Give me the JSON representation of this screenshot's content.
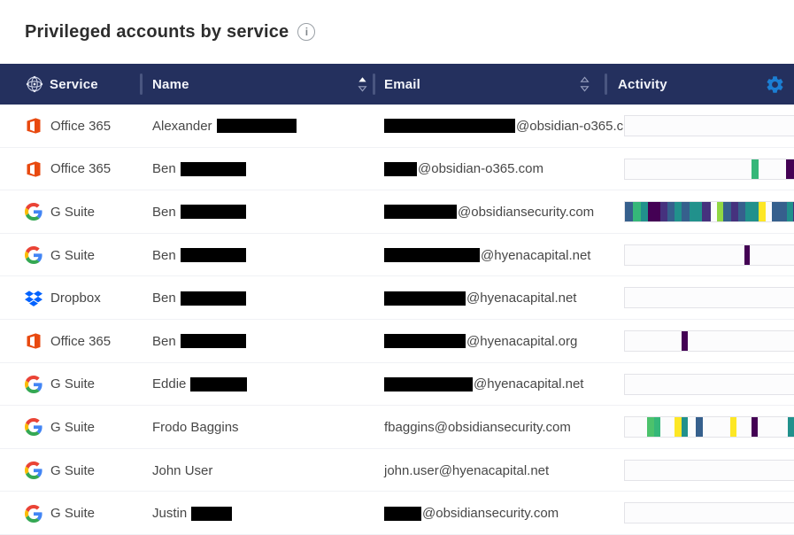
{
  "page": {
    "title": "Privileged accounts by service"
  },
  "header": {
    "columns": [
      {
        "id": "service",
        "label": "Service",
        "sort": "none"
      },
      {
        "id": "name",
        "label": "Name",
        "sort": "asc"
      },
      {
        "id": "email",
        "label": "Email",
        "sort": "none"
      },
      {
        "id": "activity",
        "label": "Activity",
        "sort": "none"
      }
    ]
  },
  "colors": {
    "header_bg": "#24305e",
    "gear_blue": "#1b7ed3",
    "office_orange": "#e8490f",
    "dropbox_blue": "#0062ff",
    "divider": "#4a5680"
  },
  "palette": {
    "darkpurple": "#440154",
    "purple": "#46327e",
    "blue": "#36608d",
    "teal": "#21918c",
    "green": "#35b779",
    "green2": "#4cc26c",
    "lightgreen": "#90d743",
    "yellow": "#fde725"
  },
  "rows": [
    {
      "service": "Office 365",
      "icon": "office365",
      "name": {
        "text": "Alexander",
        "redact_w": 90
      },
      "email": {
        "redact_w": 148,
        "text": "@obsidian-o365.c..."
      },
      "activity": []
    },
    {
      "service": "Office 365",
      "icon": "office365",
      "name": {
        "text": "Ben",
        "redact_w": 74
      },
      "email": {
        "redact_w": 37,
        "text": "@obsidian-o365.com"
      },
      "activity": [
        {
          "x": 72.9,
          "w": 4.2,
          "c": "green"
        },
        {
          "x": 92.7,
          "w": 4.7,
          "c": "darkpurple"
        }
      ]
    },
    {
      "service": "G Suite",
      "icon": "gsuite",
      "name": {
        "text": "Ben",
        "redact_w": 74
      },
      "email": {
        "redact_w": 82,
        "text": "@obsidiansecurity.com"
      },
      "activity": [
        {
          "x": 0,
          "w": 4.7,
          "c": "blue"
        },
        {
          "x": 4.7,
          "w": 4.7,
          "c": "green"
        },
        {
          "x": 9.4,
          "w": 4.2,
          "c": "teal"
        },
        {
          "x": 13.5,
          "w": 6.8,
          "c": "darkpurple"
        },
        {
          "x": 20.3,
          "w": 4.2,
          "c": "purple"
        },
        {
          "x": 24.5,
          "w": 4.2,
          "c": "blue"
        },
        {
          "x": 28.6,
          "w": 4.2,
          "c": "teal"
        },
        {
          "x": 32.8,
          "w": 4.2,
          "c": "blue"
        },
        {
          "x": 37.0,
          "w": 7.3,
          "c": "teal"
        },
        {
          "x": 44.3,
          "w": 5.2,
          "c": "purple"
        },
        {
          "x": 53.1,
          "w": 3.6,
          "c": "lightgreen"
        },
        {
          "x": 56.8,
          "w": 4.2,
          "c": "blue"
        },
        {
          "x": 61.0,
          "w": 4.2,
          "c": "purple"
        },
        {
          "x": 65.1,
          "w": 4.2,
          "c": "blue"
        },
        {
          "x": 69.3,
          "w": 4.2,
          "c": "teal"
        },
        {
          "x": 73.4,
          "w": 3.6,
          "c": "teal"
        },
        {
          "x": 77.1,
          "w": 4.2,
          "c": "yellow"
        },
        {
          "x": 84.9,
          "w": 4.2,
          "c": "blue"
        },
        {
          "x": 89.1,
          "w": 4.2,
          "c": "blue"
        },
        {
          "x": 93.2,
          "w": 3.6,
          "c": "teal"
        },
        {
          "x": 96.9,
          "w": 3.5,
          "c": "purple"
        }
      ]
    },
    {
      "service": "G Suite",
      "icon": "gsuite",
      "name": {
        "text": "Ben",
        "redact_w": 74
      },
      "email": {
        "redact_w": 108,
        "text": "@hyenacapital.net"
      },
      "activity": [
        {
          "x": 68.8,
          "w": 3.1,
          "c": "darkpurple"
        }
      ]
    },
    {
      "service": "Dropbox",
      "icon": "dropbox",
      "name": {
        "text": "Ben",
        "redact_w": 74
      },
      "email": {
        "redact_w": 92,
        "text": "@hyenacapital.net"
      },
      "activity": []
    },
    {
      "service": "Office 365",
      "icon": "office365",
      "name": {
        "text": "Ben",
        "redact_w": 74
      },
      "email": {
        "redact_w": 92,
        "text": "@hyenacapital.org"
      },
      "activity": [
        {
          "x": 32.8,
          "w": 3.6,
          "c": "darkpurple"
        }
      ]
    },
    {
      "service": "G Suite",
      "icon": "gsuite",
      "name": {
        "text": "Eddie",
        "redact_w": 64
      },
      "email": {
        "redact_w": 100,
        "text": "@hyenacapital.net"
      },
      "activity": []
    },
    {
      "service": "G Suite",
      "icon": "gsuite",
      "name": {
        "text": "Frodo Baggins",
        "redact_w": 0
      },
      "email": {
        "redact_w": 0,
        "text": "fbaggins@obsidiansecurity.com"
      },
      "activity": [
        {
          "x": 13.0,
          "w": 3.6,
          "c": "green2"
        },
        {
          "x": 16.6,
          "w": 3.6,
          "c": "green"
        },
        {
          "x": 28.6,
          "w": 4.2,
          "c": "yellow"
        },
        {
          "x": 32.8,
          "w": 3.6,
          "c": "teal"
        },
        {
          "x": 40.6,
          "w": 4.2,
          "c": "blue"
        },
        {
          "x": 60.9,
          "w": 3.6,
          "c": "yellow"
        },
        {
          "x": 72.9,
          "w": 3.6,
          "c": "darkpurple"
        },
        {
          "x": 93.8,
          "w": 3.6,
          "c": "teal"
        }
      ]
    },
    {
      "service": "G Suite",
      "icon": "gsuite",
      "name": {
        "text": "John User",
        "redact_w": 0
      },
      "email": {
        "redact_w": 0,
        "text": "john.user@hyenacapital.net"
      },
      "activity": []
    },
    {
      "service": "G Suite",
      "icon": "gsuite",
      "name": {
        "text": "Justin",
        "redact_w": 46
      },
      "email": {
        "redact_w": 42,
        "text": "@obsidiansecurity.com"
      },
      "activity": []
    }
  ]
}
